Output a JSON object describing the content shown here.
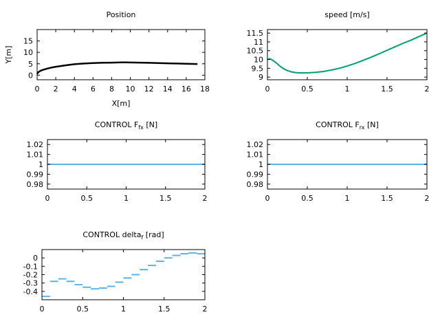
{
  "chart_data": [
    {
      "id": "position",
      "type": "line",
      "title": "Position",
      "xlabel": "X[m]",
      "ylabel": "Y[m]",
      "xlim": [
        0,
        18
      ],
      "ylim": [
        -2,
        20
      ],
      "xticks": [
        0,
        2,
        4,
        6,
        8,
        10,
        12,
        14,
        16,
        18
      ],
      "yticks": [
        0,
        5,
        10,
        15
      ],
      "grid": false,
      "series": [
        {
          "color": "#000000",
          "x": [
            0,
            0.1,
            0.3,
            0.6,
            1.0,
            1.5,
            2,
            3,
            4,
            5,
            6,
            7,
            8,
            9,
            9.5,
            10,
            11,
            12,
            13,
            14,
            15,
            16,
            17.2
          ],
          "y": [
            0.5,
            1.2,
            1.8,
            2.3,
            2.8,
            3.3,
            3.7,
            4.3,
            4.8,
            5.1,
            5.3,
            5.45,
            5.5,
            5.6,
            5.6,
            5.55,
            5.5,
            5.4,
            5.3,
            5.2,
            5.1,
            5.0,
            4.9
          ]
        }
      ]
    },
    {
      "id": "speed",
      "type": "line",
      "title": "speed [m/s]",
      "xlim": [
        0,
        2
      ],
      "ylim": [
        8.85,
        11.7
      ],
      "xticks": [
        "0",
        "0.5",
        "1",
        "1.5",
        "2"
      ],
      "yticks": [
        "9",
        "9.5",
        "10",
        "10.5",
        "11",
        "11.5"
      ],
      "grid": false,
      "series": [
        {
          "color": "#009e73",
          "x": [
            0,
            0.03,
            0.05,
            0.1,
            0.15,
            0.2,
            0.25,
            0.3,
            0.35,
            0.4,
            0.45,
            0.5,
            0.6,
            0.7,
            0.8,
            0.9,
            1.0,
            1.1,
            1.2,
            1.3,
            1.4,
            1.5,
            1.6,
            1.7,
            1.8,
            1.9,
            2.0
          ],
          "y": [
            10.0,
            10.05,
            10.0,
            9.85,
            9.65,
            9.48,
            9.37,
            9.3,
            9.26,
            9.24,
            9.24,
            9.24,
            9.27,
            9.32,
            9.4,
            9.5,
            9.63,
            9.78,
            9.95,
            10.13,
            10.32,
            10.52,
            10.72,
            10.92,
            11.1,
            11.3,
            11.5
          ]
        }
      ]
    },
    {
      "id": "fx",
      "type": "line",
      "title": "CONTROL F",
      "title_sub": "fx",
      "title_suffix": " [N]",
      "xlim": [
        0,
        2
      ],
      "ylim": [
        0.975,
        1.025
      ],
      "xticks": [
        "0",
        "0.5",
        "1",
        "1.5",
        "2"
      ],
      "yticks": [
        "0.98",
        "0.99",
        "1",
        "1.01",
        "1.02"
      ],
      "grid": false,
      "series": [
        {
          "color": "#56b4e9",
          "x": [
            0,
            2
          ],
          "y": [
            1,
            1
          ]
        }
      ]
    },
    {
      "id": "rx",
      "type": "line",
      "title": "CONTROL F",
      "title_sub": "rx",
      "title_suffix": " [N]",
      "xlim": [
        0,
        2
      ],
      "ylim": [
        0.975,
        1.025
      ],
      "xticks": [
        "0",
        "0.5",
        "1",
        "1.5",
        "2"
      ],
      "yticks": [
        "0.98",
        "0.99",
        "1",
        "1.01",
        "1.02"
      ],
      "grid": false,
      "series": [
        {
          "color": "#56b4e9",
          "x": [
            0,
            2
          ],
          "y": [
            1,
            1
          ]
        }
      ]
    },
    {
      "id": "delta",
      "type": "line",
      "title": "CONTROL delta",
      "title_sub": "f",
      "title_suffix": " [rad]",
      "xlim": [
        0,
        2
      ],
      "ylim": [
        -0.5,
        0.1
      ],
      "xticks": [
        "0",
        "0.5",
        "1",
        "1.5",
        "2"
      ],
      "yticks": [
        "-0.4",
        "-0.3",
        "-0.2",
        "-0.1",
        "0"
      ],
      "grid": false,
      "series": [
        {
          "color": "#56b4e9",
          "step": 0.1,
          "x": [
            0,
            0.1,
            0.2,
            0.3,
            0.4,
            0.5,
            0.6,
            0.7,
            0.8,
            0.9,
            1.0,
            1.1,
            1.2,
            1.3,
            1.4,
            1.5,
            1.6,
            1.7,
            1.8,
            1.9
          ],
          "y": [
            -0.46,
            -0.28,
            -0.25,
            -0.28,
            -0.32,
            -0.35,
            -0.37,
            -0.36,
            -0.34,
            -0.29,
            -0.24,
            -0.2,
            -0.14,
            -0.09,
            -0.04,
            0.0,
            0.03,
            0.05,
            0.06,
            0.05
          ]
        }
      ]
    }
  ]
}
